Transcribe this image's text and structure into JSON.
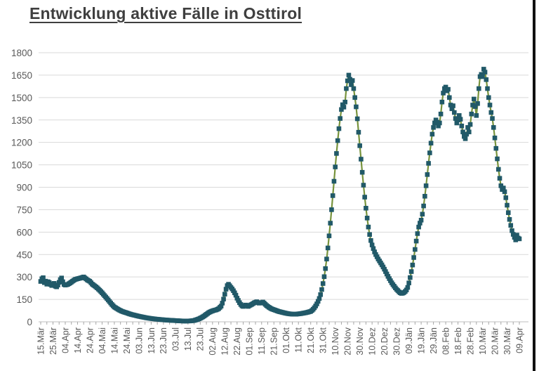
{
  "title": "Entwicklung aktive Fälle in Osttirol",
  "colors": {
    "background": "#ffffff",
    "title": "#3f3f3f",
    "line": "#77933C",
    "marker": "#215968",
    "grid": "#d9d9d9",
    "axis": "#bfbfbf",
    "tick": "#a6a6a6",
    "tick_label": "#595959",
    "window_edge": "#101010"
  },
  "chart_data": {
    "type": "line",
    "title": "Entwicklung aktive Fälle in Osttirol",
    "series_name": "aktive Fälle",
    "marker": "square",
    "legend": "none",
    "grid": "horizontal",
    "ylim": [
      0,
      1800
    ],
    "y_ticks": [
      0,
      150,
      300,
      450,
      600,
      750,
      900,
      1050,
      1200,
      1350,
      1500,
      1650,
      1800
    ],
    "x_tick_interval_days": 10,
    "x_tick_labels": [
      "15.Mär",
      "25.Mär",
      "04.Apr",
      "14.Apr",
      "24.Apr",
      "04.Mai",
      "14.Mai",
      "24.Mai",
      "03.Jun",
      "13.Jun",
      "23.Jun",
      "03.Jul",
      "13.Jul",
      "23.Jul",
      "02.Aug",
      "12.Aug",
      "22.Aug",
      "01.Sep",
      "11.Sep",
      "21.Sep",
      "01.Okt",
      "11.Okt",
      "21.Okt",
      "31.Okt",
      "10.Nov",
      "20.Nov",
      "30.Nov",
      "10.Dez",
      "20.Dez",
      "30.Dez",
      "09.Jän",
      "19.Jän",
      "29.Jän",
      "08.Feb",
      "18.Feb",
      "28.Feb",
      "10.Mär",
      "20.Mär",
      "30.Mär",
      "09.Apr"
    ],
    "points_day_value": [
      [
        0,
        270
      ],
      [
        1,
        288
      ],
      [
        2,
        295
      ],
      [
        3,
        262
      ],
      [
        4,
        272
      ],
      [
        5,
        252
      ],
      [
        6,
        268
      ],
      [
        7,
        262
      ],
      [
        8,
        250
      ],
      [
        9,
        243
      ],
      [
        10,
        252
      ],
      [
        11,
        257
      ],
      [
        12,
        238
      ],
      [
        13,
        234
      ],
      [
        14,
        246
      ],
      [
        15,
        264
      ],
      [
        16,
        282
      ],
      [
        17,
        293
      ],
      [
        18,
        268
      ],
      [
        19,
        250
      ],
      [
        20,
        246
      ],
      [
        22,
        250
      ],
      [
        24,
        260
      ],
      [
        26,
        272
      ],
      [
        28,
        283
      ],
      [
        30,
        288
      ],
      [
        32,
        292
      ],
      [
        34,
        297
      ],
      [
        35,
        300
      ],
      [
        36,
        293
      ],
      [
        37,
        287
      ],
      [
        38,
        280
      ],
      [
        40,
        271
      ],
      [
        42,
        252
      ],
      [
        44,
        240
      ],
      [
        46,
        227
      ],
      [
        48,
        211
      ],
      [
        50,
        194
      ],
      [
        52,
        175
      ],
      [
        54,
        156
      ],
      [
        56,
        136
      ],
      [
        58,
        116
      ],
      [
        60,
        99
      ],
      [
        62,
        89
      ],
      [
        64,
        79
      ],
      [
        66,
        71
      ],
      [
        68,
        65
      ],
      [
        70,
        60
      ],
      [
        72,
        54
      ],
      [
        74,
        49
      ],
      [
        76,
        45
      ],
      [
        78,
        41
      ],
      [
        80,
        37
      ],
      [
        83,
        32
      ],
      [
        86,
        27
      ],
      [
        90,
        22
      ],
      [
        94,
        18
      ],
      [
        98,
        15
      ],
      [
        102,
        12
      ],
      [
        106,
        10
      ],
      [
        110,
        8
      ],
      [
        114,
        6
      ],
      [
        118,
        5
      ],
      [
        122,
        6
      ],
      [
        125,
        9
      ],
      [
        127,
        14
      ],
      [
        129,
        20
      ],
      [
        131,
        28
      ],
      [
        133,
        38
      ],
      [
        135,
        50
      ],
      [
        137,
        62
      ],
      [
        139,
        70
      ],
      [
        141,
        76
      ],
      [
        143,
        80
      ],
      [
        145,
        88
      ],
      [
        147,
        105
      ],
      [
        148,
        125
      ],
      [
        149,
        152
      ],
      [
        150,
        185
      ],
      [
        151,
        218
      ],
      [
        152,
        242
      ],
      [
        153,
        251
      ],
      [
        154,
        241
      ],
      [
        155,
        230
      ],
      [
        156,
        220
      ],
      [
        157,
        208
      ],
      [
        158,
        194
      ],
      [
        159,
        178
      ],
      [
        160,
        158
      ],
      [
        161,
        143
      ],
      [
        162,
        128
      ],
      [
        163,
        116
      ],
      [
        164,
        107
      ],
      [
        165,
        103
      ],
      [
        166,
        108
      ],
      [
        167,
        112
      ],
      [
        168,
        107
      ],
      [
        169,
        103
      ],
      [
        170,
        108
      ],
      [
        172,
        117
      ],
      [
        174,
        127
      ],
      [
        176,
        134
      ],
      [
        177,
        129
      ],
      [
        178,
        125
      ],
      [
        180,
        128
      ],
      [
        181,
        132
      ],
      [
        182,
        125
      ],
      [
        184,
        109
      ],
      [
        186,
        97
      ],
      [
        188,
        87
      ],
      [
        190,
        81
      ],
      [
        192,
        75
      ],
      [
        194,
        69
      ],
      [
        196,
        65
      ],
      [
        198,
        61
      ],
      [
        200,
        57
      ],
      [
        202,
        54
      ],
      [
        204,
        52
      ],
      [
        206,
        51
      ],
      [
        208,
        51
      ],
      [
        210,
        53
      ],
      [
        212,
        55
      ],
      [
        214,
        58
      ],
      [
        216,
        61
      ],
      [
        218,
        65
      ],
      [
        220,
        70
      ],
      [
        221,
        76
      ],
      [
        222,
        84
      ],
      [
        223,
        94
      ],
      [
        224,
        106
      ],
      [
        225,
        120
      ],
      [
        226,
        137
      ],
      [
        227,
        156
      ],
      [
        228,
        182
      ],
      [
        229,
        216
      ],
      [
        230,
        256
      ],
      [
        231,
        302
      ],
      [
        232,
        356
      ],
      [
        233,
        420
      ],
      [
        234,
        494
      ],
      [
        235,
        575
      ],
      [
        236,
        660
      ],
      [
        237,
        750
      ],
      [
        238,
        844
      ],
      [
        239,
        940
      ],
      [
        240,
        1036
      ],
      [
        241,
        1126
      ],
      [
        242,
        1212
      ],
      [
        243,
        1292
      ],
      [
        244,
        1360
      ],
      [
        245,
        1420
      ],
      [
        246,
        1452
      ],
      [
        247,
        1436
      ],
      [
        248,
        1470
      ],
      [
        249,
        1560
      ],
      [
        250,
        1612
      ],
      [
        251,
        1650
      ],
      [
        252,
        1622
      ],
      [
        253,
        1586
      ],
      [
        254,
        1614
      ],
      [
        255,
        1560
      ],
      [
        256,
        1500
      ],
      [
        257,
        1438
      ],
      [
        258,
        1358
      ],
      [
        259,
        1268
      ],
      [
        260,
        1178
      ],
      [
        261,
        1088
      ],
      [
        262,
        1000
      ],
      [
        263,
        914
      ],
      [
        264,
        834
      ],
      [
        265,
        760
      ],
      [
        266,
        694
      ],
      [
        267,
        634
      ],
      [
        268,
        584
      ],
      [
        269,
        544
      ],
      [
        270,
        514
      ],
      [
        271,
        490
      ],
      [
        272,
        468
      ],
      [
        273,
        450
      ],
      [
        274,
        435
      ],
      [
        275,
        420
      ],
      [
        276,
        407
      ],
      [
        277,
        394
      ],
      [
        278,
        381
      ],
      [
        279,
        367
      ],
      [
        280,
        352
      ],
      [
        281,
        336
      ],
      [
        282,
        320
      ],
      [
        283,
        304
      ],
      [
        284,
        289
      ],
      [
        285,
        275
      ],
      [
        286,
        261
      ],
      [
        287,
        249
      ],
      [
        288,
        238
      ],
      [
        289,
        227
      ],
      [
        290,
        217
      ],
      [
        291,
        209
      ],
      [
        292,
        200
      ],
      [
        293,
        194
      ],
      [
        294,
        190
      ],
      [
        295,
        192
      ],
      [
        296,
        196
      ],
      [
        297,
        203
      ],
      [
        298,
        213
      ],
      [
        299,
        230
      ],
      [
        300,
        260
      ],
      [
        301,
        296
      ],
      [
        302,
        336
      ],
      [
        303,
        380
      ],
      [
        304,
        430
      ],
      [
        305,
        484
      ],
      [
        306,
        540
      ],
      [
        307,
        590
      ],
      [
        308,
        634
      ],
      [
        309,
        660
      ],
      [
        310,
        680
      ],
      [
        311,
        720
      ],
      [
        312,
        775
      ],
      [
        313,
        840
      ],
      [
        314,
        910
      ],
      [
        315,
        985
      ],
      [
        316,
        1060
      ],
      [
        317,
        1130
      ],
      [
        318,
        1195
      ],
      [
        319,
        1255
      ],
      [
        320,
        1300
      ],
      [
        321,
        1330
      ],
      [
        322,
        1350
      ],
      [
        323,
        1335
      ],
      [
        324,
        1310
      ],
      [
        325,
        1330
      ],
      [
        326,
        1390
      ],
      [
        327,
        1470
      ],
      [
        328,
        1530
      ],
      [
        329,
        1560
      ],
      [
        330,
        1570
      ],
      [
        331,
        1545
      ],
      [
        332,
        1555
      ],
      [
        333,
        1500
      ],
      [
        334,
        1450
      ],
      [
        335,
        1425
      ],
      [
        336,
        1445
      ],
      [
        337,
        1400
      ],
      [
        338,
        1360
      ],
      [
        339,
        1330
      ],
      [
        340,
        1350
      ],
      [
        341,
        1380
      ],
      [
        342,
        1355
      ],
      [
        343,
        1310
      ],
      [
        344,
        1270
      ],
      [
        345,
        1240
      ],
      [
        346,
        1225
      ],
      [
        347,
        1255
      ],
      [
        348,
        1300
      ],
      [
        349,
        1270
      ],
      [
        350,
        1320
      ],
      [
        351,
        1390
      ],
      [
        352,
        1450
      ],
      [
        353,
        1490
      ],
      [
        354,
        1440
      ],
      [
        355,
        1380
      ],
      [
        356,
        1460
      ],
      [
        357,
        1560
      ],
      [
        358,
        1640
      ],
      [
        359,
        1655
      ],
      [
        360,
        1640
      ],
      [
        361,
        1690
      ],
      [
        362,
        1670
      ],
      [
        363,
        1620
      ],
      [
        364,
        1560
      ],
      [
        365,
        1500
      ],
      [
        366,
        1450
      ],
      [
        367,
        1400
      ],
      [
        368,
        1360
      ],
      [
        369,
        1300
      ],
      [
        370,
        1230
      ],
      [
        371,
        1160
      ],
      [
        372,
        1090
      ],
      [
        373,
        1020
      ],
      [
        374,
        960
      ],
      [
        375,
        910
      ],
      [
        376,
        885
      ],
      [
        377,
        895
      ],
      [
        378,
        870
      ],
      [
        379,
        830
      ],
      [
        380,
        780
      ],
      [
        381,
        730
      ],
      [
        382,
        685
      ],
      [
        383,
        645
      ],
      [
        384,
        610
      ],
      [
        385,
        585
      ],
      [
        386,
        565
      ],
      [
        387,
        548
      ],
      [
        388,
        580
      ],
      [
        389,
        560
      ],
      [
        390,
        555
      ]
    ]
  }
}
